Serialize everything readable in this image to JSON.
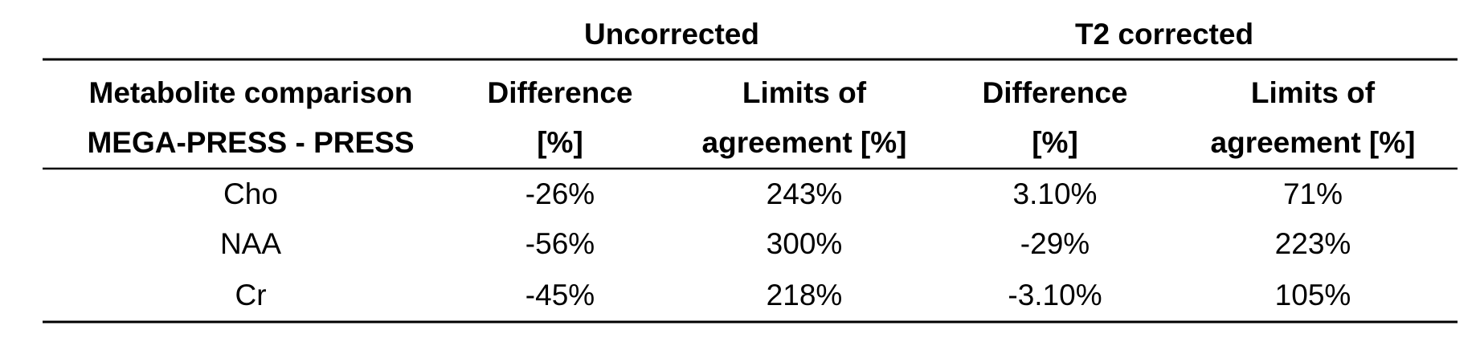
{
  "table": {
    "group_headers": [
      "Uncorrected",
      "T2 corrected"
    ],
    "headers": [
      [
        "Metabolite comparison",
        "MEGA-PRESS - PRESS"
      ],
      [
        "Difference",
        "[%]"
      ],
      [
        "Limits of",
        "agreement [%]"
      ],
      [
        "Difference",
        "[%]"
      ],
      [
        "Limits of",
        "agreement [%]"
      ]
    ],
    "rows": [
      [
        "Cho",
        "-26%",
        "243%",
        "3.10%",
        "71%"
      ],
      [
        "NAA",
        "-56%",
        "300%",
        "-29%",
        "223%"
      ],
      [
        "Cr",
        "-45%",
        "218%",
        "-3.10%",
        "105%"
      ]
    ]
  }
}
